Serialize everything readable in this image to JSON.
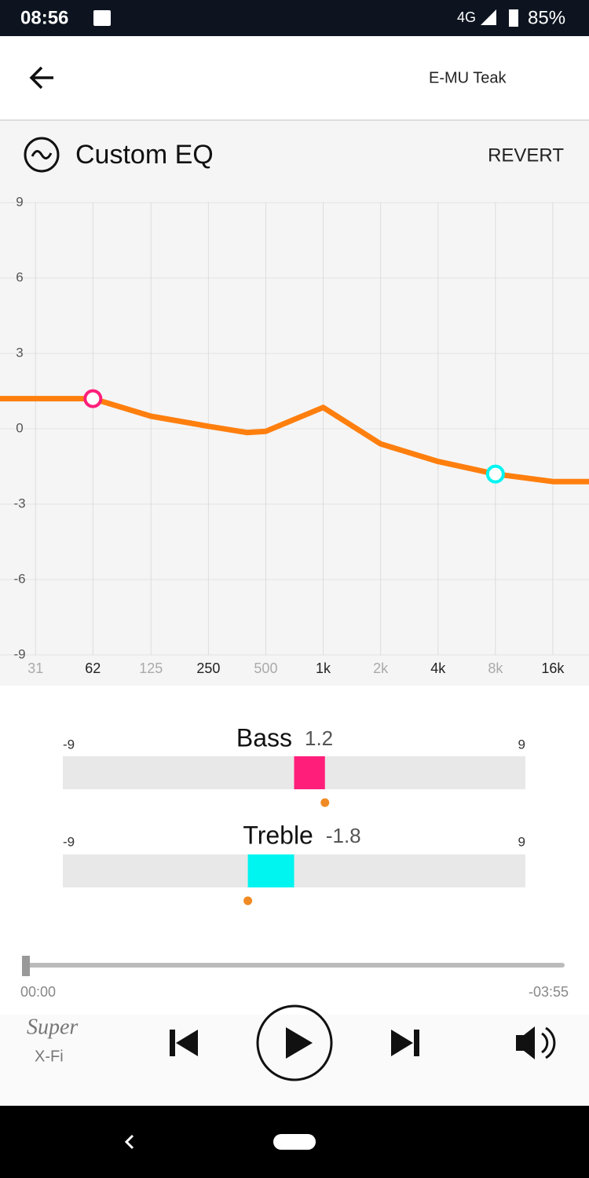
{
  "status_bar": {
    "time": "08:56",
    "network": "4G",
    "battery": "85%"
  },
  "header": {
    "device": "E-MU Teak"
  },
  "eq": {
    "title": "Custom EQ",
    "revert": "REVERT",
    "xlim": [
      20,
      25000
    ],
    "log_x": true,
    "xticks": [
      31,
      62,
      125,
      250,
      500,
      {
        "value": 1000,
        "label": "1k"
      },
      {
        "value": 2000,
        "label": "2k"
      },
      {
        "value": 4000,
        "label": "4k"
      },
      {
        "value": 8000,
        "label": "8k"
      },
      {
        "value": 16000,
        "label": "16k"
      }
    ],
    "ylim": [
      -9,
      9
    ],
    "yticks": [
      9,
      6,
      3,
      0,
      -3,
      -6,
      -9
    ],
    "grid": true,
    "curve": {
      "color": "#ff7f0e",
      "x": [
        20,
        62,
        125,
        250,
        400,
        500,
        1000,
        2000,
        4000,
        8000,
        16000,
        25000
      ],
      "y": [
        1.2,
        1.2,
        0.5,
        0.1,
        -0.15,
        -0.1,
        0.85,
        -0.6,
        -1.3,
        -1.8,
        -2.1,
        -2.1
      ]
    }
  },
  "bass": {
    "label": "Bass",
    "value": 1.2,
    "min": -9,
    "max": 9,
    "color": "#ff1f7a"
  },
  "treble": {
    "label": "Treble",
    "value": -1.8,
    "min": -9,
    "max": 9,
    "color": "#00f5f0"
  },
  "player": {
    "elapsed": "00:00",
    "remaining": "-03:55"
  },
  "logo": {
    "line1": "Super",
    "line2": "X-Fi"
  }
}
